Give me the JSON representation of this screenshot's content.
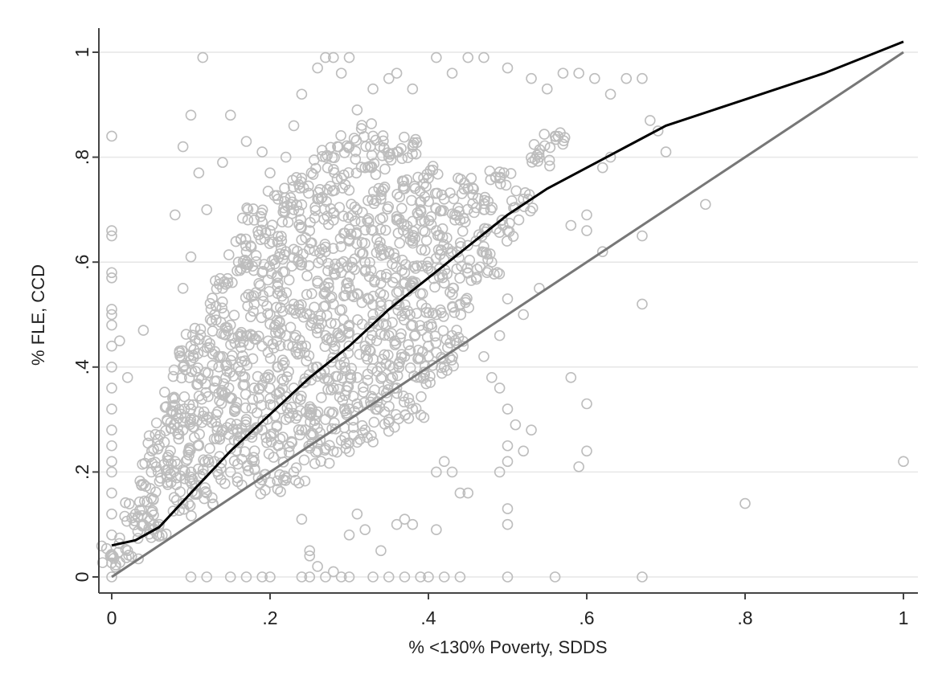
{
  "chart_data": {
    "type": "scatter",
    "title": "",
    "xlabel": "% <130% Poverty, SDDS",
    "ylabel": "% FLE, CCD",
    "xlim": [
      0,
      1
    ],
    "ylim": [
      0,
      1
    ],
    "grid": true,
    "legend": "none",
    "x_ticks": [
      {
        "value": 0,
        "label": "0"
      },
      {
        "value": 0.2,
        "label": ".2"
      },
      {
        "value": 0.4,
        "label": ".4"
      },
      {
        "value": 0.6,
        "label": ".6"
      },
      {
        "value": 0.8,
        "label": ".8"
      },
      {
        "value": 1,
        "label": "1"
      }
    ],
    "y_ticks": [
      {
        "value": 0,
        "label": "0"
      },
      {
        "value": 0.2,
        "label": ".2"
      },
      {
        "value": 0.4,
        "label": ".4"
      },
      {
        "value": 0.6,
        "label": ".6"
      },
      {
        "value": 0.8,
        "label": ".8"
      },
      {
        "value": 1,
        "label": "1"
      }
    ],
    "colors": {
      "points": "#bdbdbd",
      "fit_line": "#000000",
      "reference_line": "#777777",
      "grid": "#e6e6e6",
      "axis": "#444444"
    },
    "series": [
      {
        "kind": "points",
        "points": [
          [
            0.0,
            0.84
          ],
          [
            0.0,
            0.66
          ],
          [
            0.0,
            0.65
          ],
          [
            0.0,
            0.58
          ],
          [
            0.0,
            0.57
          ],
          [
            0.0,
            0.51
          ],
          [
            0.0,
            0.5
          ],
          [
            0.0,
            0.48
          ],
          [
            0.0,
            0.44
          ],
          [
            0.0,
            0.4
          ],
          [
            0.0,
            0.36
          ],
          [
            0.0,
            0.32
          ],
          [
            0.0,
            0.28
          ],
          [
            0.0,
            0.25
          ],
          [
            0.0,
            0.22
          ],
          [
            0.0,
            0.2
          ],
          [
            0.0,
            0.16
          ],
          [
            0.0,
            0.12
          ],
          [
            0.0,
            0.08
          ],
          [
            0.0,
            0.04
          ],
          [
            0.0,
            0.0
          ],
          [
            0.01,
            0.45
          ],
          [
            0.02,
            0.38
          ],
          [
            0.04,
            0.47
          ],
          [
            0.1,
            0.88
          ],
          [
            0.09,
            0.82
          ],
          [
            0.11,
            0.77
          ],
          [
            0.115,
            0.99
          ],
          [
            0.08,
            0.69
          ],
          [
            0.12,
            0.7
          ],
          [
            0.14,
            0.79
          ],
          [
            0.15,
            0.88
          ],
          [
            0.1,
            0.61
          ],
          [
            0.09,
            0.55
          ],
          [
            0.17,
            0.83
          ],
          [
            0.19,
            0.81
          ],
          [
            0.2,
            0.77
          ],
          [
            0.22,
            0.8
          ],
          [
            0.23,
            0.86
          ],
          [
            0.24,
            0.92
          ],
          [
            0.26,
            0.97
          ],
          [
            0.27,
            0.99
          ],
          [
            0.28,
            0.99
          ],
          [
            0.29,
            0.96
          ],
          [
            0.3,
            0.99
          ],
          [
            0.31,
            0.89
          ],
          [
            0.33,
            0.93
          ],
          [
            0.35,
            0.95
          ],
          [
            0.36,
            0.96
          ],
          [
            0.38,
            0.93
          ],
          [
            0.41,
            0.99
          ],
          [
            0.43,
            0.96
          ],
          [
            0.45,
            0.99
          ],
          [
            0.47,
            0.99
          ],
          [
            0.5,
            0.97
          ],
          [
            0.53,
            0.95
          ],
          [
            0.55,
            0.93
          ],
          [
            0.57,
            0.96
          ],
          [
            0.59,
            0.96
          ],
          [
            0.61,
            0.95
          ],
          [
            0.63,
            0.92
          ],
          [
            0.65,
            0.95
          ],
          [
            0.67,
            0.95
          ],
          [
            0.68,
            0.87
          ],
          [
            0.69,
            0.85
          ],
          [
            0.7,
            0.81
          ],
          [
            0.62,
            0.78
          ],
          [
            0.63,
            0.8
          ],
          [
            0.75,
            0.71
          ],
          [
            0.6,
            0.69
          ],
          [
            0.58,
            0.67
          ],
          [
            0.6,
            0.66
          ],
          [
            0.62,
            0.62
          ],
          [
            0.67,
            0.65
          ],
          [
            0.67,
            0.52
          ],
          [
            0.54,
            0.55
          ],
          [
            0.52,
            0.5
          ],
          [
            0.5,
            0.53
          ],
          [
            0.49,
            0.46
          ],
          [
            0.47,
            0.42
          ],
          [
            0.48,
            0.38
          ],
          [
            0.49,
            0.36
          ],
          [
            0.5,
            0.32
          ],
          [
            0.51,
            0.29
          ],
          [
            0.5,
            0.25
          ],
          [
            0.52,
            0.24
          ],
          [
            0.53,
            0.28
          ],
          [
            0.5,
            0.22
          ],
          [
            0.49,
            0.2
          ],
          [
            0.58,
            0.38
          ],
          [
            0.6,
            0.33
          ],
          [
            0.6,
            0.24
          ],
          [
            0.59,
            0.21
          ],
          [
            0.5,
            0.13
          ],
          [
            0.5,
            0.1
          ],
          [
            0.44,
            0.16
          ],
          [
            0.45,
            0.16
          ],
          [
            0.43,
            0.2
          ],
          [
            0.42,
            0.22
          ],
          [
            0.41,
            0.2
          ],
          [
            0.38,
            0.1
          ],
          [
            0.41,
            0.09
          ],
          [
            0.8,
            0.14
          ],
          [
            1.0,
            0.22
          ],
          [
            0.24,
            0.11
          ],
          [
            0.25,
            0.05
          ],
          [
            0.25,
            0.04
          ],
          [
            0.26,
            0.02
          ],
          [
            0.28,
            0.01
          ],
          [
            0.3,
            0.08
          ],
          [
            0.32,
            0.09
          ],
          [
            0.34,
            0.05
          ],
          [
            0.36,
            0.1
          ],
          [
            0.37,
            0.11
          ],
          [
            0.31,
            0.12
          ],
          [
            0.1,
            0.0
          ],
          [
            0.12,
            0.0
          ],
          [
            0.15,
            0.0
          ],
          [
            0.17,
            0.0
          ],
          [
            0.19,
            0.0
          ],
          [
            0.2,
            0.0
          ],
          [
            0.24,
            0.0
          ],
          [
            0.25,
            0.0
          ],
          [
            0.27,
            0.0
          ],
          [
            0.29,
            0.0
          ],
          [
            0.3,
            0.0
          ],
          [
            0.33,
            0.0
          ],
          [
            0.35,
            0.0
          ],
          [
            0.37,
            0.0
          ],
          [
            0.39,
            0.0
          ],
          [
            0.4,
            0.0
          ],
          [
            0.42,
            0.0
          ],
          [
            0.44,
            0.0
          ],
          [
            0.5,
            0.0
          ],
          [
            0.56,
            0.0
          ],
          [
            0.67,
            0.0
          ]
        ]
      },
      {
        "kind": "dense_cloud",
        "points": [
          [
            0.0,
            0.04
          ],
          [
            0.02,
            0.05
          ],
          [
            0.03,
            0.12
          ],
          [
            0.04,
            0.1
          ],
          [
            0.05,
            0.15
          ],
          [
            0.05,
            0.2
          ],
          [
            0.06,
            0.1
          ],
          [
            0.06,
            0.25
          ],
          [
            0.07,
            0.18
          ],
          [
            0.07,
            0.3
          ],
          [
            0.08,
            0.22
          ],
          [
            0.08,
            0.34
          ],
          [
            0.09,
            0.14
          ],
          [
            0.09,
            0.28
          ],
          [
            0.09,
            0.4
          ],
          [
            0.1,
            0.2
          ],
          [
            0.1,
            0.32
          ],
          [
            0.1,
            0.44
          ],
          [
            0.11,
            0.25
          ],
          [
            0.11,
            0.38
          ],
          [
            0.12,
            0.16
          ],
          [
            0.12,
            0.3
          ],
          [
            0.12,
            0.45
          ],
          [
            0.13,
            0.22
          ],
          [
            0.13,
            0.36
          ],
          [
            0.13,
            0.5
          ],
          [
            0.14,
            0.28
          ],
          [
            0.14,
            0.42
          ],
          [
            0.14,
            0.55
          ],
          [
            0.15,
            0.2
          ],
          [
            0.15,
            0.34
          ],
          [
            0.15,
            0.48
          ],
          [
            0.16,
            0.26
          ],
          [
            0.16,
            0.4
          ],
          [
            0.16,
            0.6
          ],
          [
            0.17,
            0.3
          ],
          [
            0.17,
            0.46
          ],
          [
            0.17,
            0.62
          ],
          [
            0.18,
            0.22
          ],
          [
            0.18,
            0.36
          ],
          [
            0.18,
            0.52
          ],
          [
            0.18,
            0.68
          ],
          [
            0.19,
            0.28
          ],
          [
            0.19,
            0.44
          ],
          [
            0.19,
            0.58
          ],
          [
            0.2,
            0.18
          ],
          [
            0.2,
            0.34
          ],
          [
            0.2,
            0.5
          ],
          [
            0.2,
            0.66
          ],
          [
            0.21,
            0.25
          ],
          [
            0.21,
            0.4
          ],
          [
            0.21,
            0.56
          ],
          [
            0.21,
            0.72
          ],
          [
            0.22,
            0.3
          ],
          [
            0.22,
            0.46
          ],
          [
            0.22,
            0.62
          ],
          [
            0.23,
            0.2
          ],
          [
            0.23,
            0.36
          ],
          [
            0.23,
            0.52
          ],
          [
            0.23,
            0.7
          ],
          [
            0.24,
            0.28
          ],
          [
            0.24,
            0.44
          ],
          [
            0.24,
            0.6
          ],
          [
            0.24,
            0.76
          ],
          [
            0.25,
            0.32
          ],
          [
            0.25,
            0.5
          ],
          [
            0.25,
            0.66
          ],
          [
            0.26,
            0.24
          ],
          [
            0.26,
            0.4
          ],
          [
            0.26,
            0.56
          ],
          [
            0.26,
            0.72
          ],
          [
            0.27,
            0.3
          ],
          [
            0.27,
            0.46
          ],
          [
            0.27,
            0.62
          ],
          [
            0.27,
            0.8
          ],
          [
            0.28,
            0.36
          ],
          [
            0.28,
            0.52
          ],
          [
            0.28,
            0.68
          ],
          [
            0.29,
            0.26
          ],
          [
            0.29,
            0.42
          ],
          [
            0.29,
            0.58
          ],
          [
            0.29,
            0.76
          ],
          [
            0.3,
            0.32
          ],
          [
            0.3,
            0.48
          ],
          [
            0.3,
            0.64
          ],
          [
            0.3,
            0.82
          ],
          [
            0.31,
            0.38
          ],
          [
            0.31,
            0.54
          ],
          [
            0.31,
            0.7
          ],
          [
            0.32,
            0.28
          ],
          [
            0.32,
            0.44
          ],
          [
            0.32,
            0.6
          ],
          [
            0.32,
            0.78
          ],
          [
            0.33,
            0.34
          ],
          [
            0.33,
            0.5
          ],
          [
            0.33,
            0.66
          ],
          [
            0.33,
            0.84
          ],
          [
            0.34,
            0.4
          ],
          [
            0.34,
            0.56
          ],
          [
            0.34,
            0.72
          ],
          [
            0.35,
            0.3
          ],
          [
            0.35,
            0.46
          ],
          [
            0.35,
            0.62
          ],
          [
            0.35,
            0.8
          ],
          [
            0.36,
            0.36
          ],
          [
            0.36,
            0.52
          ],
          [
            0.36,
            0.68
          ],
          [
            0.37,
            0.42
          ],
          [
            0.37,
            0.58
          ],
          [
            0.37,
            0.74
          ],
          [
            0.38,
            0.32
          ],
          [
            0.38,
            0.48
          ],
          [
            0.38,
            0.64
          ],
          [
            0.38,
            0.82
          ],
          [
            0.39,
            0.38
          ],
          [
            0.39,
            0.54
          ],
          [
            0.39,
            0.7
          ],
          [
            0.4,
            0.44
          ],
          [
            0.4,
            0.6
          ],
          [
            0.4,
            0.76
          ],
          [
            0.41,
            0.5
          ],
          [
            0.41,
            0.66
          ],
          [
            0.42,
            0.4
          ],
          [
            0.42,
            0.56
          ],
          [
            0.42,
            0.72
          ],
          [
            0.43,
            0.46
          ],
          [
            0.43,
            0.62
          ],
          [
            0.44,
            0.52
          ],
          [
            0.44,
            0.68
          ],
          [
            0.45,
            0.58
          ],
          [
            0.45,
            0.74
          ],
          [
            0.46,
            0.64
          ],
          [
            0.47,
            0.7
          ],
          [
            0.48,
            0.6
          ],
          [
            0.49,
            0.76
          ],
          [
            0.5,
            0.66
          ],
          [
            0.52,
            0.72
          ],
          [
            0.54,
            0.8
          ],
          [
            0.56,
            0.84
          ]
        ]
      },
      {
        "kind": "fit_line",
        "points": [
          [
            0.0,
            0.06
          ],
          [
            0.03,
            0.07
          ],
          [
            0.06,
            0.095
          ],
          [
            0.1,
            0.16
          ],
          [
            0.15,
            0.24
          ],
          [
            0.2,
            0.31
          ],
          [
            0.25,
            0.38
          ],
          [
            0.3,
            0.44
          ],
          [
            0.35,
            0.51
          ],
          [
            0.4,
            0.57
          ],
          [
            0.45,
            0.63
          ],
          [
            0.5,
            0.69
          ],
          [
            0.55,
            0.74
          ],
          [
            0.6,
            0.78
          ],
          [
            0.65,
            0.82
          ],
          [
            0.7,
            0.86
          ],
          [
            0.8,
            0.91
          ],
          [
            0.9,
            0.96
          ],
          [
            1.0,
            1.02
          ]
        ]
      },
      {
        "kind": "reference_line",
        "points": [
          [
            0.0,
            0.0
          ],
          [
            1.0,
            1.0
          ]
        ]
      }
    ]
  }
}
